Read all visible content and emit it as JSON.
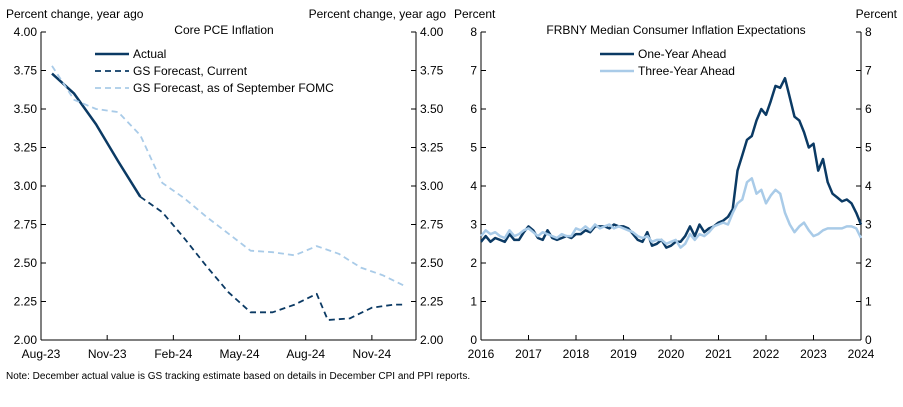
{
  "note": "Note: December actual value is GS tracking estimate based on details in December CPI and PPI reports.",
  "chart_data": [
    {
      "type": "line",
      "title": "Core PCE Inflation",
      "ylabel_left": "Percent change, year ago",
      "ylabel_right": "Percent change, year ago",
      "ylim": [
        2.0,
        4.0
      ],
      "yticks": [
        "2.00",
        "2.25",
        "2.50",
        "2.75",
        "3.00",
        "3.25",
        "3.50",
        "3.75",
        "4.00"
      ],
      "x_tick_labels": [
        "Aug-23",
        "Nov-23",
        "Feb-24",
        "May-24",
        "Aug-24",
        "Nov-24"
      ],
      "x_tick_index": [
        0,
        3,
        6,
        9,
        12,
        15
      ],
      "x_count": 17,
      "legend_position": "top-left",
      "grid": false,
      "series": [
        {
          "name": "Actual",
          "color": "#0b3a64",
          "dash": "solid",
          "width": 2.5,
          "points": [
            [
              0,
              3.73
            ],
            [
              1,
              3.6
            ],
            [
              2,
              3.4
            ],
            [
              3,
              3.16
            ],
            [
              4,
              2.93
            ]
          ]
        },
        {
          "name": "GS Forecast, Current",
          "color": "#0b3a64",
          "dash": "dashed",
          "width": 1.8,
          "points": [
            [
              4,
              2.93
            ],
            [
              5,
              2.83
            ],
            [
              6,
              2.66
            ],
            [
              7,
              2.48
            ],
            [
              8,
              2.31
            ],
            [
              9,
              2.18
            ],
            [
              10,
              2.18
            ],
            [
              11,
              2.23
            ],
            [
              12,
              2.3
            ],
            [
              12.5,
              2.13
            ],
            [
              13.5,
              2.14
            ],
            [
              14.5,
              2.21
            ],
            [
              15.5,
              2.23
            ],
            [
              16,
              2.23
            ]
          ]
        },
        {
          "name": "GS Forecast, as of September FOMC",
          "color": "#a9cbe8",
          "dash": "dashed",
          "width": 1.8,
          "points": [
            [
              0,
              3.78
            ],
            [
              1,
              3.56
            ],
            [
              2,
              3.5
            ],
            [
              3,
              3.48
            ],
            [
              4,
              3.33
            ],
            [
              5,
              3.02
            ],
            [
              6,
              2.92
            ],
            [
              7,
              2.8
            ],
            [
              8,
              2.69
            ],
            [
              9,
              2.58
            ],
            [
              10,
              2.57
            ],
            [
              11,
              2.55
            ],
            [
              12,
              2.61
            ],
            [
              13,
              2.56
            ],
            [
              14,
              2.47
            ],
            [
              15,
              2.42
            ],
            [
              16,
              2.35
            ]
          ]
        }
      ]
    },
    {
      "type": "line",
      "title": "FRBNY Median Consumer Inflation Expectations",
      "ylabel_left": "Percent",
      "ylabel_right": "Percent",
      "ylim": [
        0,
        8
      ],
      "yticks": [
        "0",
        "1",
        "2",
        "3",
        "4",
        "5",
        "6",
        "7",
        "8"
      ],
      "xlim": [
        2016.0,
        2024.0
      ],
      "x_tick_labels": [
        "2016",
        "2017",
        "2018",
        "2019",
        "2020",
        "2021",
        "2022",
        "2023",
        "2024"
      ],
      "x_ticks": [
        2016,
        2017,
        2018,
        2019,
        2020,
        2021,
        2022,
        2023,
        2024
      ],
      "legend_position": "top-center",
      "grid": false,
      "series": [
        {
          "name": "One-Year Ahead",
          "color": "#0b3a64",
          "width": 2.5,
          "points": [
            [
              2016.0,
              2.55
            ],
            [
              2016.1,
              2.7
            ],
            [
              2016.2,
              2.55
            ],
            [
              2016.3,
              2.65
            ],
            [
              2016.4,
              2.6
            ],
            [
              2016.5,
              2.55
            ],
            [
              2016.6,
              2.75
            ],
            [
              2016.7,
              2.6
            ],
            [
              2016.8,
              2.6
            ],
            [
              2016.9,
              2.8
            ],
            [
              2017.0,
              2.95
            ],
            [
              2017.1,
              2.85
            ],
            [
              2017.2,
              2.65
            ],
            [
              2017.3,
              2.6
            ],
            [
              2017.4,
              2.85
            ],
            [
              2017.5,
              2.65
            ],
            [
              2017.6,
              2.6
            ],
            [
              2017.7,
              2.65
            ],
            [
              2017.8,
              2.7
            ],
            [
              2017.9,
              2.65
            ],
            [
              2018.0,
              2.75
            ],
            [
              2018.1,
              2.75
            ],
            [
              2018.2,
              2.85
            ],
            [
              2018.3,
              2.8
            ],
            [
              2018.4,
              2.95
            ],
            [
              2018.5,
              2.95
            ],
            [
              2018.6,
              2.95
            ],
            [
              2018.7,
              2.9
            ],
            [
              2018.8,
              3.0
            ],
            [
              2018.9,
              2.95
            ],
            [
              2019.0,
              2.95
            ],
            [
              2019.1,
              2.9
            ],
            [
              2019.2,
              2.75
            ],
            [
              2019.3,
              2.6
            ],
            [
              2019.4,
              2.55
            ],
            [
              2019.5,
              2.8
            ],
            [
              2019.6,
              2.45
            ],
            [
              2019.7,
              2.5
            ],
            [
              2019.8,
              2.6
            ],
            [
              2019.9,
              2.4
            ],
            [
              2020.0,
              2.45
            ],
            [
              2020.1,
              2.55
            ],
            [
              2020.2,
              2.55
            ],
            [
              2020.3,
              2.7
            ],
            [
              2020.4,
              2.95
            ],
            [
              2020.5,
              2.7
            ],
            [
              2020.6,
              3.0
            ],
            [
              2020.7,
              2.8
            ],
            [
              2020.8,
              2.9
            ],
            [
              2020.9,
              2.95
            ],
            [
              2021.0,
              3.05
            ],
            [
              2021.1,
              3.1
            ],
            [
              2021.2,
              3.2
            ],
            [
              2021.3,
              3.4
            ],
            [
              2021.4,
              4.4
            ],
            [
              2021.5,
              4.8
            ],
            [
              2021.6,
              5.2
            ],
            [
              2021.7,
              5.3
            ],
            [
              2021.8,
              5.7
            ],
            [
              2021.9,
              6.0
            ],
            [
              2022.0,
              5.85
            ],
            [
              2022.1,
              6.2
            ],
            [
              2022.2,
              6.6
            ],
            [
              2022.3,
              6.55
            ],
            [
              2022.4,
              6.8
            ],
            [
              2022.5,
              6.3
            ],
            [
              2022.6,
              5.8
            ],
            [
              2022.7,
              5.7
            ],
            [
              2022.8,
              5.4
            ],
            [
              2022.9,
              5.0
            ],
            [
              2023.0,
              5.1
            ],
            [
              2023.1,
              4.4
            ],
            [
              2023.2,
              4.7
            ],
            [
              2023.3,
              4.1
            ],
            [
              2023.4,
              3.8
            ],
            [
              2023.5,
              3.7
            ],
            [
              2023.6,
              3.6
            ],
            [
              2023.7,
              3.65
            ],
            [
              2023.8,
              3.55
            ],
            [
              2023.9,
              3.3
            ],
            [
              2024.0,
              3.0
            ]
          ]
        },
        {
          "name": "Three-Year Ahead",
          "color": "#a9cbe8",
          "width": 2.5,
          "points": [
            [
              2016.0,
              2.7
            ],
            [
              2016.1,
              2.85
            ],
            [
              2016.2,
              2.75
            ],
            [
              2016.3,
              2.8
            ],
            [
              2016.4,
              2.7
            ],
            [
              2016.5,
              2.65
            ],
            [
              2016.6,
              2.85
            ],
            [
              2016.7,
              2.7
            ],
            [
              2016.8,
              2.75
            ],
            [
              2016.9,
              2.85
            ],
            [
              2017.0,
              2.9
            ],
            [
              2017.1,
              2.8
            ],
            [
              2017.2,
              2.7
            ],
            [
              2017.3,
              2.8
            ],
            [
              2017.4,
              2.75
            ],
            [
              2017.5,
              2.7
            ],
            [
              2017.6,
              2.65
            ],
            [
              2017.7,
              2.75
            ],
            [
              2017.8,
              2.7
            ],
            [
              2017.9,
              2.7
            ],
            [
              2018.0,
              2.9
            ],
            [
              2018.1,
              2.85
            ],
            [
              2018.2,
              2.95
            ],
            [
              2018.3,
              2.85
            ],
            [
              2018.4,
              3.0
            ],
            [
              2018.5,
              2.9
            ],
            [
              2018.6,
              2.95
            ],
            [
              2018.7,
              3.0
            ],
            [
              2018.8,
              2.9
            ],
            [
              2018.9,
              2.95
            ],
            [
              2019.0,
              2.9
            ],
            [
              2019.1,
              2.85
            ],
            [
              2019.2,
              2.8
            ],
            [
              2019.3,
              2.7
            ],
            [
              2019.4,
              2.65
            ],
            [
              2019.5,
              2.7
            ],
            [
              2019.6,
              2.55
            ],
            [
              2019.7,
              2.6
            ],
            [
              2019.8,
              2.6
            ],
            [
              2019.9,
              2.5
            ],
            [
              2020.0,
              2.55
            ],
            [
              2020.1,
              2.6
            ],
            [
              2020.2,
              2.4
            ],
            [
              2020.3,
              2.5
            ],
            [
              2020.4,
              2.75
            ],
            [
              2020.5,
              2.6
            ],
            [
              2020.6,
              2.75
            ],
            [
              2020.7,
              2.7
            ],
            [
              2020.8,
              2.8
            ],
            [
              2020.9,
              2.95
            ],
            [
              2021.0,
              3.0
            ],
            [
              2021.1,
              3.05
            ],
            [
              2021.2,
              3.0
            ],
            [
              2021.3,
              3.3
            ],
            [
              2021.4,
              3.55
            ],
            [
              2021.5,
              3.65
            ],
            [
              2021.6,
              4.1
            ],
            [
              2021.7,
              4.2
            ],
            [
              2021.8,
              3.8
            ],
            [
              2021.9,
              3.9
            ],
            [
              2022.0,
              3.55
            ],
            [
              2022.1,
              3.75
            ],
            [
              2022.2,
              3.9
            ],
            [
              2022.3,
              3.8
            ],
            [
              2022.4,
              3.3
            ],
            [
              2022.5,
              3.0
            ],
            [
              2022.6,
              2.8
            ],
            [
              2022.7,
              2.95
            ],
            [
              2022.8,
              3.05
            ],
            [
              2022.9,
              2.85
            ],
            [
              2023.0,
              2.7
            ],
            [
              2023.1,
              2.75
            ],
            [
              2023.2,
              2.85
            ],
            [
              2023.3,
              2.9
            ],
            [
              2023.4,
              2.9
            ],
            [
              2023.5,
              2.9
            ],
            [
              2023.6,
              2.9
            ],
            [
              2023.7,
              2.95
            ],
            [
              2023.8,
              2.95
            ],
            [
              2023.9,
              2.9
            ],
            [
              2024.0,
              2.65
            ]
          ]
        }
      ]
    }
  ]
}
